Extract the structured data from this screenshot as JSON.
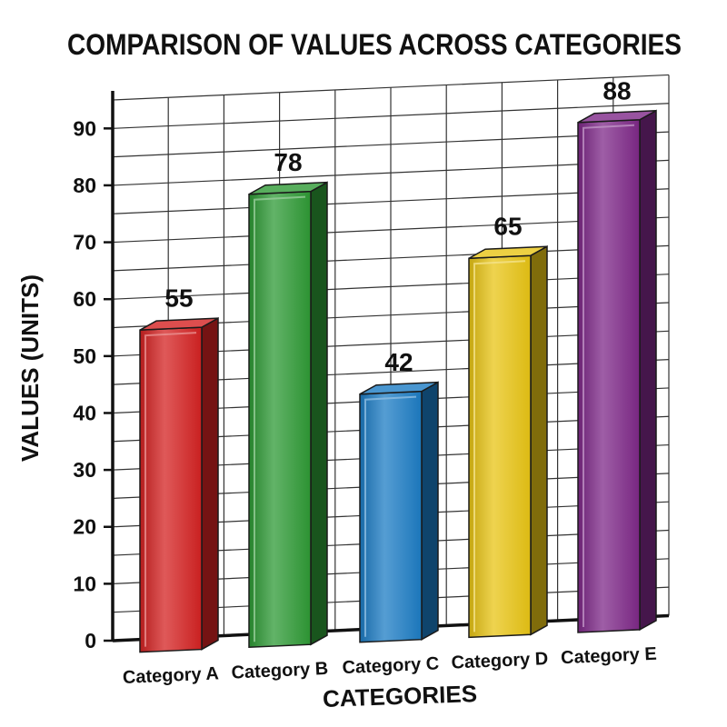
{
  "chart_data": {
    "type": "bar",
    "title": "COMPARISON OF VALUES ACROSS CATEGORIES",
    "xlabel": "CATEGORIES",
    "ylabel": "VALUES (UNITS)",
    "categories": [
      "Category A",
      "Category B",
      "Category C",
      "Category D",
      "Category E"
    ],
    "values": [
      55,
      78,
      42,
      65,
      88
    ],
    "ylim": [
      0,
      95
    ],
    "yticks": [
      0,
      10,
      20,
      30,
      40,
      50,
      60,
      70,
      80,
      90
    ],
    "grid": true,
    "legend": "none",
    "style": "3d-perspective",
    "colors": [
      "#d42222",
      "#2e9a35",
      "#1c7cc4",
      "#e8c414",
      "#7e2888"
    ],
    "axis_color": "#111111",
    "grid_color": "#333333"
  }
}
